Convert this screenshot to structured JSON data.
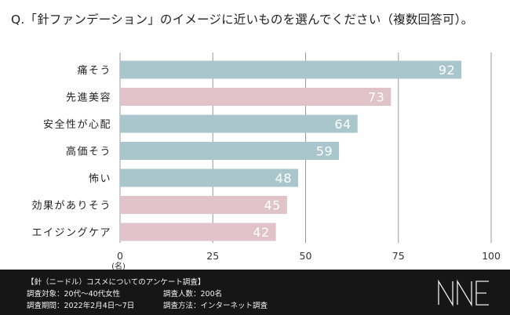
{
  "question": "Q.「針ファンデーション」のイメージに近いものを選んでください（複数回答可）。",
  "chart_data": {
    "type": "bar",
    "orientation": "horizontal",
    "categories": [
      "痛そう",
      "先進美容",
      "安全性が心配",
      "高価そう",
      "怖い",
      "効果がありそう",
      "エイジングケア"
    ],
    "values": [
      92,
      73,
      64,
      59,
      48,
      45,
      42
    ],
    "bar_colors": [
      "#a9c6cc",
      "#dfc3c8",
      "#a9c6cc",
      "#a9c6cc",
      "#a9c6cc",
      "#dfc3c8",
      "#dfc3c8"
    ],
    "xlim": [
      0,
      100
    ],
    "xticks": [
      "0",
      "25",
      "50",
      "75",
      "100"
    ],
    "unit_label": "(名)",
    "grid": true
  },
  "footer": {
    "survey_title": "【針（ニードル）コスメについてのアンケート調査】",
    "target": "調査対象：20代〜40代女性",
    "period": "調査期間：2022年2月4日〜7日",
    "count": "調査人数：200名",
    "method": "調査方法：インターネット調査",
    "logo": "NNE"
  }
}
